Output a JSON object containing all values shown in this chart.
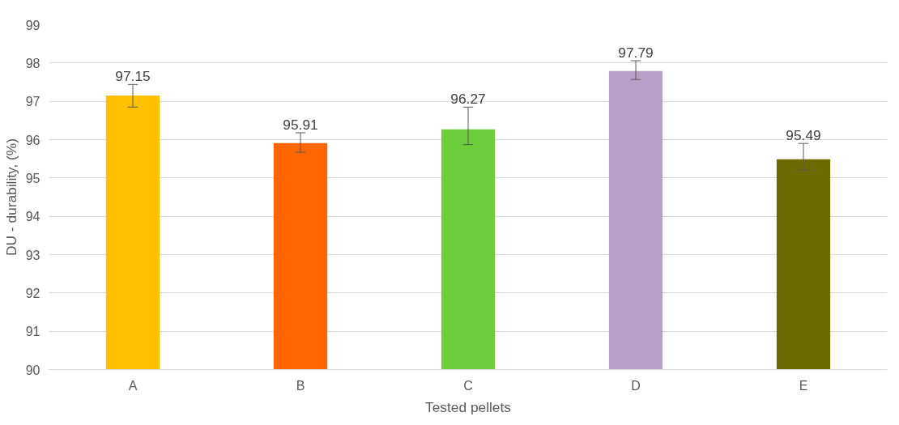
{
  "chart_data": {
    "type": "bar",
    "xlabel": "Tested pellets",
    "ylabel": "DU - durability, (%)",
    "categories": [
      "A",
      "B",
      "C",
      "D",
      "E"
    ],
    "values": [
      97.15,
      95.91,
      96.27,
      97.79,
      95.49
    ],
    "colors": [
      "#ffc000",
      "#ff6600",
      "#6dcd3d",
      "#b4a0c8",
      "#6b6b00"
    ],
    "errors": [
      [
        96.85,
        97.44
      ],
      [
        95.67,
        96.18
      ],
      [
        95.87,
        96.85
      ],
      [
        97.57,
        98.06
      ],
      [
        95.2,
        95.9
      ]
    ],
    "ylim": [
      90,
      99
    ],
    "yticks": [
      90,
      91,
      92,
      93,
      94,
      95,
      96,
      97,
      98,
      99
    ],
    "grid": "y",
    "data_labels": true
  }
}
